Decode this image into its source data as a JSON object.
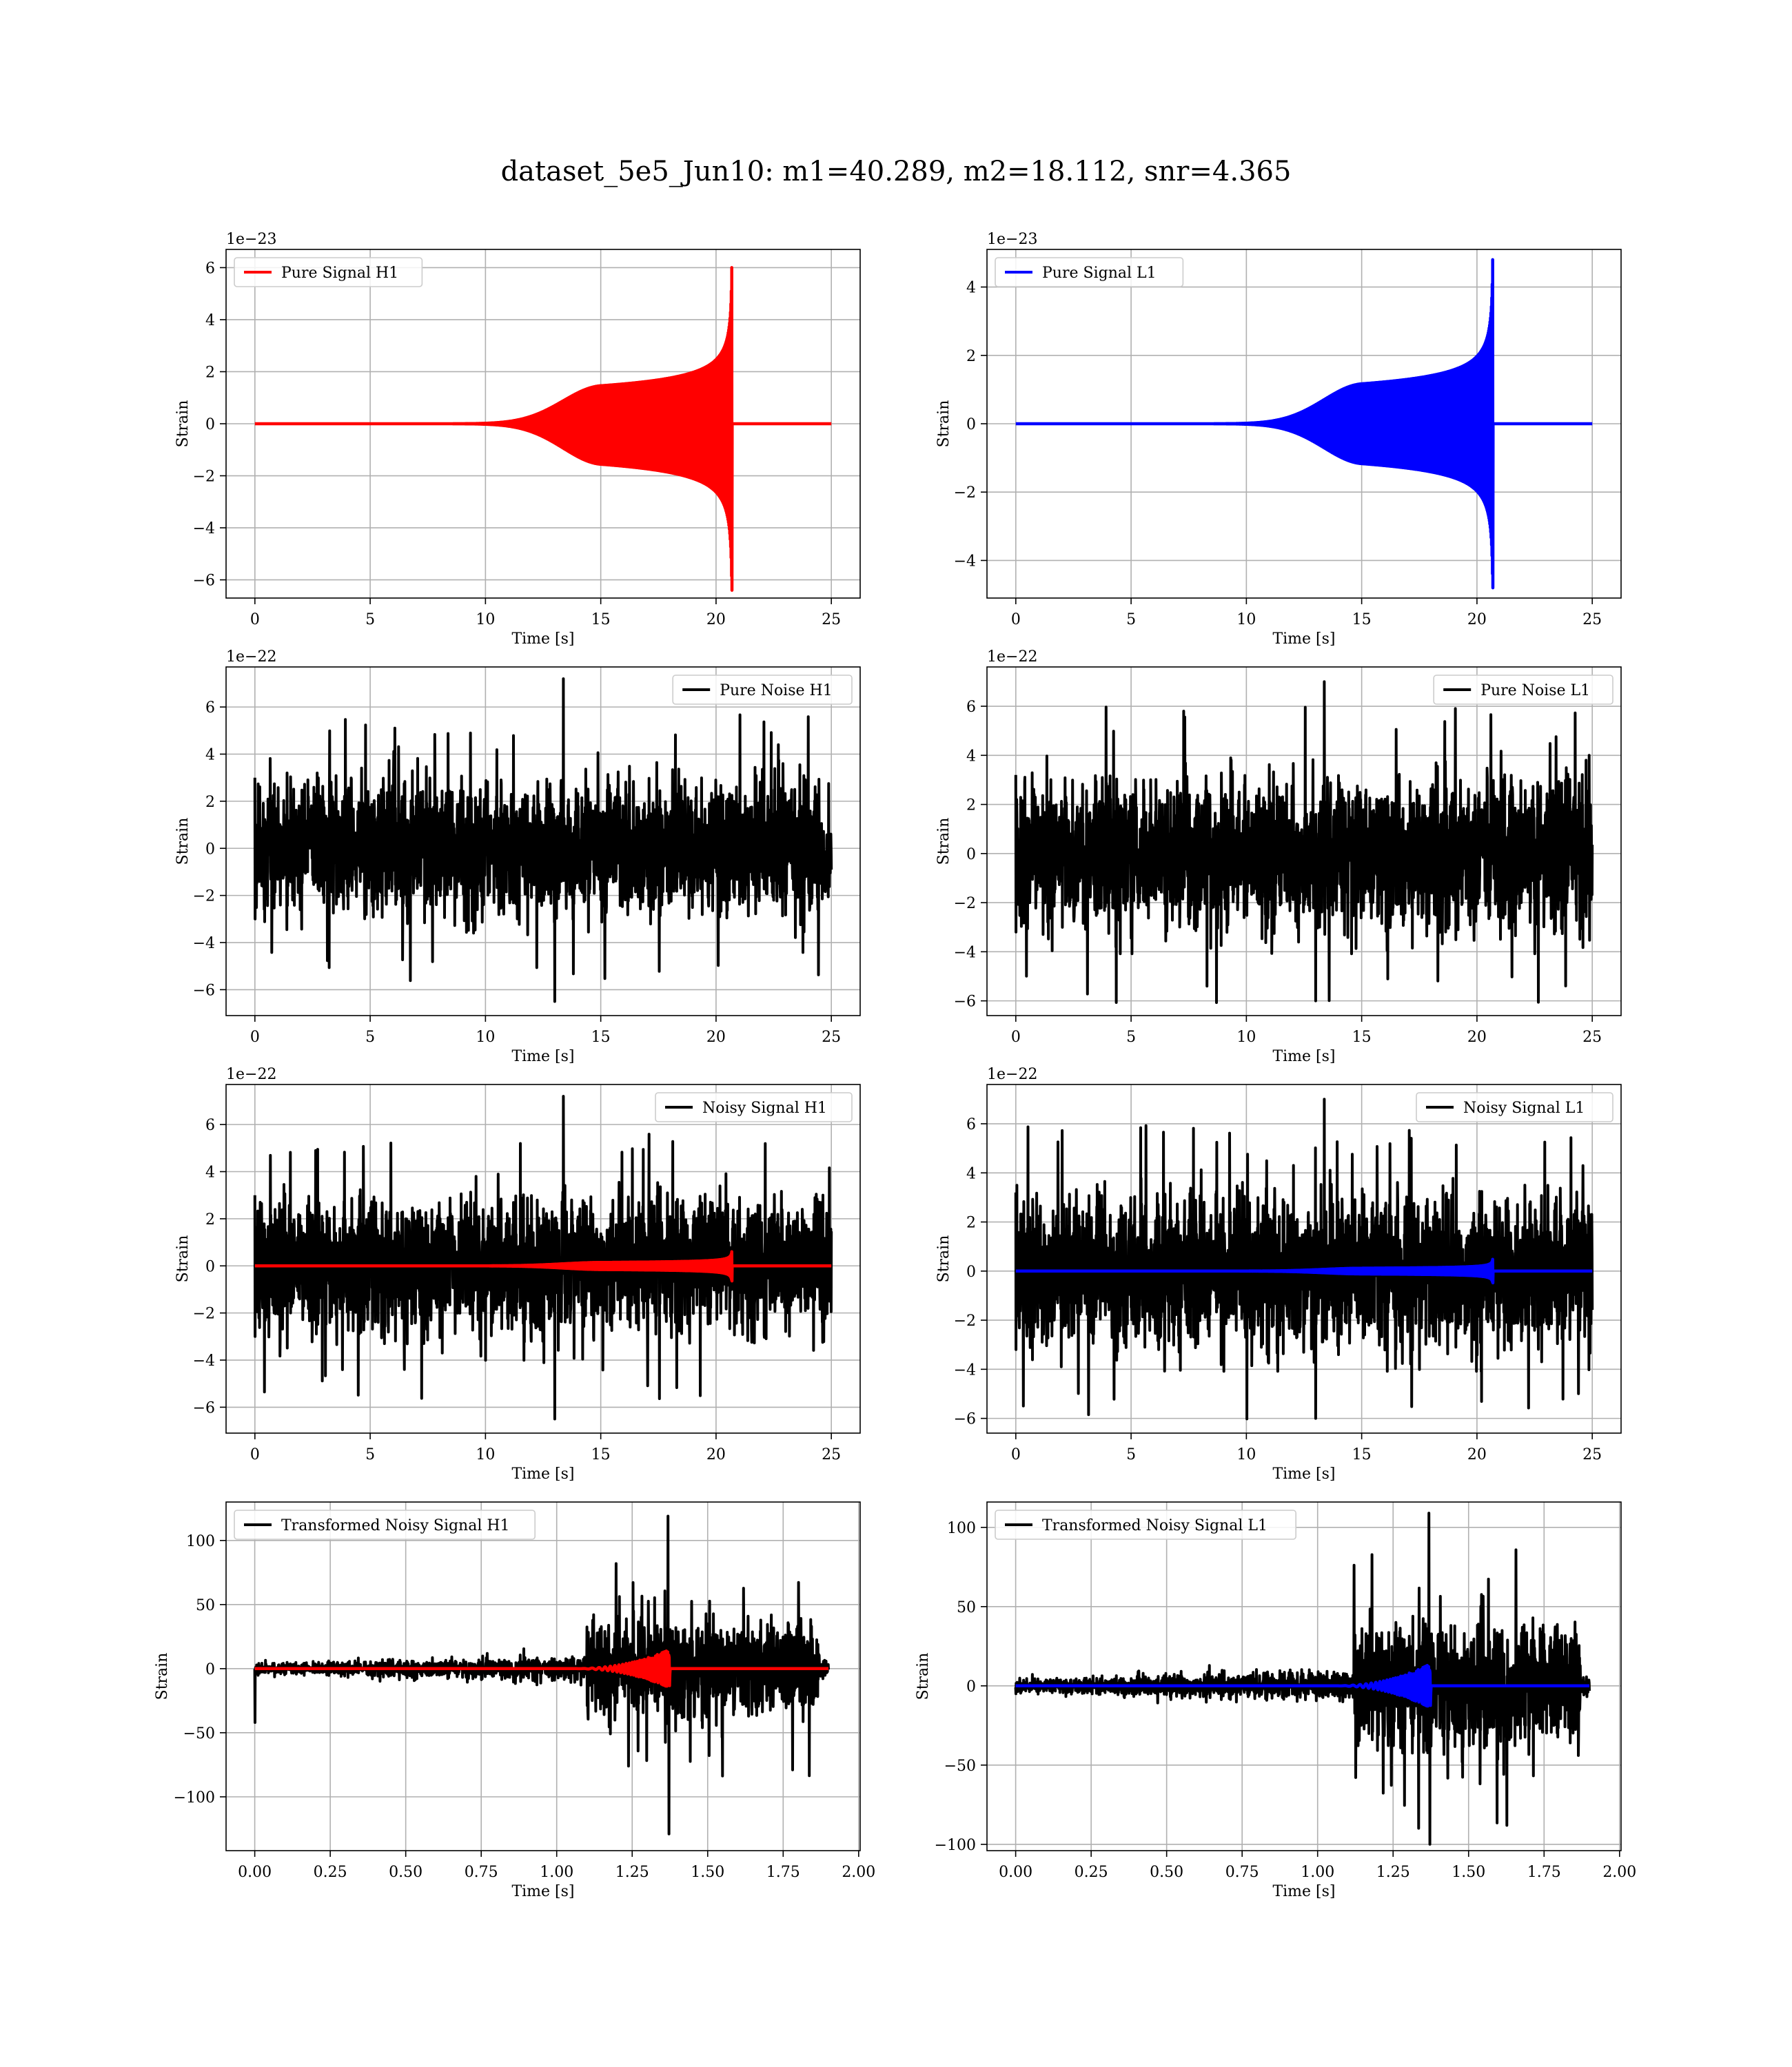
{
  "figure": {
    "suptitle": "dataset_5e5_Jun10: m1=40.289, m2=18.112, snr=4.365",
    "colors": {
      "h1_signal": "#ff0000",
      "l1_signal": "#0000ff",
      "noise": "#000000",
      "grid": "#b0b0b0"
    }
  },
  "chart_data": [
    {
      "id": "pure-signal-h1",
      "type": "line",
      "title": "",
      "xlabel": "Time [s]",
      "ylabel": "Strain",
      "xlim": [
        -1.25,
        26.25
      ],
      "ylim": [
        -6.7,
        6.7
      ],
      "xticks": [
        0,
        5,
        10,
        15,
        20,
        25
      ],
      "xtick_labels": [
        "0",
        "5",
        "10",
        "15",
        "20",
        "25"
      ],
      "yticks": [
        -6,
        -4,
        -2,
        0,
        2,
        4,
        6
      ],
      "ytick_labels": [
        "−6",
        "−4",
        "−2",
        "0",
        "2",
        "4",
        "6"
      ],
      "offset_text": "1e−23",
      "grid": true,
      "legend_position": "top-left",
      "series": [
        {
          "name": "Pure Signal H1",
          "color": "#ff0000",
          "kind": "chirp",
          "x_range": [
            0,
            25
          ],
          "merger_time": 20.7,
          "peak_upper": 6.0,
          "peak_lower": -6.4
        }
      ]
    },
    {
      "id": "pure-signal-l1",
      "type": "line",
      "title": "",
      "xlabel": "Time [s]",
      "ylabel": "Strain",
      "xlim": [
        -1.25,
        26.25
      ],
      "ylim": [
        -5.1,
        5.1
      ],
      "xticks": [
        0,
        5,
        10,
        15,
        20,
        25
      ],
      "xtick_labels": [
        "0",
        "5",
        "10",
        "15",
        "20",
        "25"
      ],
      "yticks": [
        -4,
        -2,
        0,
        2,
        4
      ],
      "ytick_labels": [
        "−4",
        "−2",
        "0",
        "2",
        "4"
      ],
      "offset_text": "1e−23",
      "grid": true,
      "legend_position": "top-left",
      "series": [
        {
          "name": "Pure Signal L1",
          "color": "#0000ff",
          "kind": "chirp",
          "x_range": [
            0,
            25
          ],
          "merger_time": 20.7,
          "peak_upper": 4.8,
          "peak_lower": -4.8
        }
      ]
    },
    {
      "id": "pure-noise-h1",
      "type": "line",
      "title": "",
      "xlabel": "Time [s]",
      "ylabel": "Strain",
      "xlim": [
        -1.25,
        26.25
      ],
      "ylim": [
        -7.1,
        7.7
      ],
      "xticks": [
        0,
        5,
        10,
        15,
        20,
        25
      ],
      "xtick_labels": [
        "0",
        "5",
        "10",
        "15",
        "20",
        "25"
      ],
      "yticks": [
        -6,
        -4,
        -2,
        0,
        2,
        4,
        6
      ],
      "ytick_labels": [
        "−6",
        "−4",
        "−2",
        "0",
        "2",
        "4",
        "6"
      ],
      "offset_text": "1e−22",
      "grid": true,
      "legend_position": "top-right",
      "series": [
        {
          "name": "Pure Noise H1",
          "color": "#000000",
          "kind": "noise",
          "x_range": [
            0,
            25
          ],
          "amplitude": 3.0,
          "max": 7.2,
          "min": -6.5
        }
      ]
    },
    {
      "id": "pure-noise-l1",
      "type": "line",
      "title": "",
      "xlabel": "Time [s]",
      "ylabel": "Strain",
      "xlim": [
        -1.25,
        26.25
      ],
      "ylim": [
        -6.6,
        7.6
      ],
      "xticks": [
        0,
        5,
        10,
        15,
        20,
        25
      ],
      "xtick_labels": [
        "0",
        "5",
        "10",
        "15",
        "20",
        "25"
      ],
      "yticks": [
        -6,
        -4,
        -2,
        0,
        2,
        4,
        6
      ],
      "ytick_labels": [
        "−6",
        "−4",
        "−2",
        "0",
        "2",
        "4",
        "6"
      ],
      "offset_text": "1e−22",
      "grid": true,
      "legend_position": "top-right",
      "series": [
        {
          "name": "Pure Noise L1",
          "color": "#000000",
          "kind": "noise",
          "x_range": [
            0,
            25
          ],
          "amplitude": 3.2,
          "max": 7.0,
          "min": -6.0
        }
      ]
    },
    {
      "id": "noisy-signal-h1",
      "type": "line",
      "title": "",
      "xlabel": "Time [s]",
      "ylabel": "Strain",
      "xlim": [
        -1.25,
        26.25
      ],
      "ylim": [
        -7.1,
        7.7
      ],
      "xticks": [
        0,
        5,
        10,
        15,
        20,
        25
      ],
      "xtick_labels": [
        "0",
        "5",
        "10",
        "15",
        "20",
        "25"
      ],
      "yticks": [
        -6,
        -4,
        -2,
        0,
        2,
        4,
        6
      ],
      "ytick_labels": [
        "−6",
        "−4",
        "−2",
        "0",
        "2",
        "4",
        "6"
      ],
      "offset_text": "1e−22",
      "grid": true,
      "legend_position": "top-right",
      "series": [
        {
          "name": "Noisy Signal H1",
          "color": "#000000",
          "kind": "noise",
          "x_range": [
            0,
            25
          ],
          "amplitude": 3.0,
          "max": 7.2,
          "min": -6.5
        },
        {
          "name": "",
          "color": "#ff0000",
          "kind": "chirp",
          "x_range": [
            0,
            25
          ],
          "merger_time": 20.7,
          "peak_upper": 0.6,
          "peak_lower": -0.64
        }
      ]
    },
    {
      "id": "noisy-signal-l1",
      "type": "line",
      "title": "",
      "xlabel": "Time [s]",
      "ylabel": "Strain",
      "xlim": [
        -1.25,
        26.25
      ],
      "ylim": [
        -6.6,
        7.6
      ],
      "xticks": [
        0,
        5,
        10,
        15,
        20,
        25
      ],
      "xtick_labels": [
        "0",
        "5",
        "10",
        "15",
        "20",
        "25"
      ],
      "yticks": [
        -6,
        -4,
        -2,
        0,
        2,
        4,
        6
      ],
      "ytick_labels": [
        "−6",
        "−4",
        "−2",
        "0",
        "2",
        "4",
        "6"
      ],
      "offset_text": "1e−22",
      "grid": true,
      "legend_position": "top-right",
      "series": [
        {
          "name": "Noisy Signal L1",
          "color": "#000000",
          "kind": "noise",
          "x_range": [
            0,
            25
          ],
          "amplitude": 3.2,
          "max": 7.0,
          "min": -6.0
        },
        {
          "name": "",
          "color": "#0000ff",
          "kind": "chirp",
          "x_range": [
            0,
            25
          ],
          "merger_time": 20.7,
          "peak_upper": 0.48,
          "peak_lower": -0.48
        }
      ]
    },
    {
      "id": "transformed-noisy-signal-h1",
      "type": "line",
      "title": "",
      "xlabel": "Time [s]",
      "ylabel": "Strain",
      "xlim": [
        -0.095,
        2.005
      ],
      "ylim": [
        -142,
        130
      ],
      "xticks": [
        0,
        0.25,
        0.5,
        0.75,
        1.0,
        1.25,
        1.5,
        1.75,
        2.0
      ],
      "xtick_labels": [
        "0.00",
        "0.25",
        "0.50",
        "0.75",
        "1.00",
        "1.25",
        "1.50",
        "1.75",
        "2.00"
      ],
      "yticks": [
        -100,
        -50,
        0,
        50,
        100
      ],
      "ytick_labels": [
        "−100",
        "−50",
        "0",
        "50",
        "100"
      ],
      "offset_text": "",
      "grid": true,
      "legend_position": "top-left",
      "series": [
        {
          "name": "Transformed Noisy Signal H1",
          "color": "#000000",
          "kind": "whitened",
          "x_range": [
            0,
            1.9
          ],
          "burst_start": 1.1,
          "burst_end": 1.87,
          "pre_amplitude": 8,
          "burst_amplitude": 42,
          "max": 119,
          "min": -129
        },
        {
          "name": "",
          "color": "#ff0000",
          "kind": "whitened-chirp",
          "x_range": [
            0,
            1.9
          ],
          "chirp_start": 1.05,
          "merger_time": 1.375,
          "peak": 15
        }
      ]
    },
    {
      "id": "transformed-noisy-signal-l1",
      "type": "line",
      "title": "",
      "xlabel": "Time [s]",
      "ylabel": "Strain",
      "xlim": [
        -0.095,
        2.005
      ],
      "ylim": [
        -104,
        116
      ],
      "xticks": [
        0,
        0.25,
        0.5,
        0.75,
        1.0,
        1.25,
        1.5,
        1.75,
        2.0
      ],
      "xtick_labels": [
        "0.00",
        "0.25",
        "0.50",
        "0.75",
        "1.00",
        "1.25",
        "1.50",
        "1.75",
        "2.00"
      ],
      "yticks": [
        -100,
        -50,
        0,
        50,
        100
      ],
      "ytick_labels": [
        "−100",
        "−50",
        "0",
        "50",
        "100"
      ],
      "offset_text": "",
      "grid": true,
      "legend_position": "top-left",
      "series": [
        {
          "name": "Transformed Noisy Signal L1",
          "color": "#000000",
          "kind": "whitened",
          "x_range": [
            0,
            1.9
          ],
          "burst_start": 1.12,
          "burst_end": 1.87,
          "pre_amplitude": 8,
          "burst_amplitude": 45,
          "max": 109,
          "min": -100
        },
        {
          "name": "",
          "color": "#0000ff",
          "kind": "whitened-chirp",
          "x_range": [
            0,
            1.9
          ],
          "chirp_start": 1.05,
          "merger_time": 1.375,
          "peak": 14
        }
      ]
    }
  ]
}
